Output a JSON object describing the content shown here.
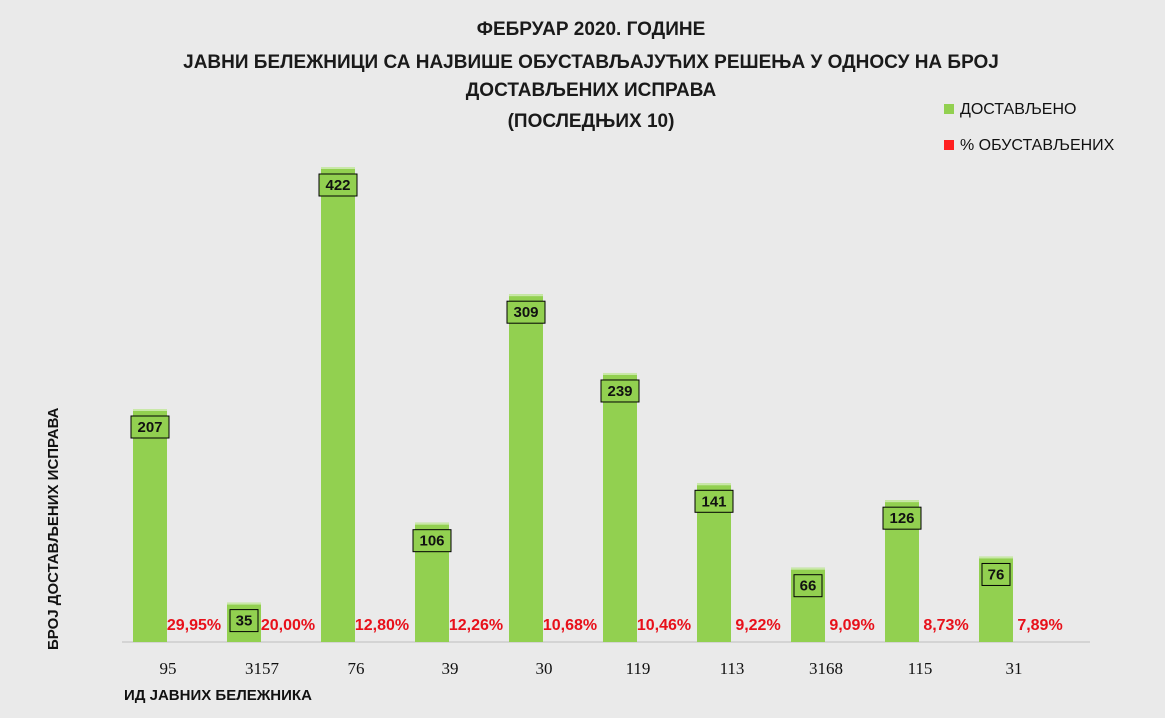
{
  "chart_data": {
    "type": "bar",
    "title_lines": [
      "ФЕБРУАР 2020. ГОДИНЕ",
      "ЈАВНИ БЕЛЕЖНИЦИ СА НАЈВИШЕ ОБУСТАВЉАЈУЋИХ РЕШЕЊА У ОДНОСУ НА БРОЈ",
      "ДОСТАВЉЕНИХ ИСПРАВА",
      "(ПОСЛЕДЊИХ 10)"
    ],
    "xlabel": "ИД ЈАВНИХ БЕЛЕЖНИКА",
    "ylabel": "БРОЈ ДОСТАВЉЕНИХ ИСПРАВА",
    "categories": [
      "95",
      "3157",
      "76",
      "39",
      "30",
      "119",
      "113",
      "3168",
      "115",
      "31"
    ],
    "series": [
      {
        "name": "ДОСТАВЉЕНО",
        "color": "#92d050",
        "values": [
          207,
          35,
          422,
          106,
          309,
          239,
          141,
          66,
          126,
          76
        ]
      },
      {
        "name": "% ОБУСТАВЉЕНИХ",
        "color": "#ff2020",
        "values": [
          29.95,
          20.0,
          12.8,
          12.26,
          10.68,
          10.46,
          9.22,
          9.09,
          8.73,
          7.89
        ],
        "labels": [
          "29,95%",
          "20,00%",
          "12,80%",
          "12,26%",
          "10,68%",
          "10,46%",
          "9,22%",
          "9,09%",
          "8,73%",
          "7,89%"
        ]
      }
    ],
    "ylim": [
      0,
      500
    ],
    "grid": false,
    "legend_position": "top-right"
  }
}
